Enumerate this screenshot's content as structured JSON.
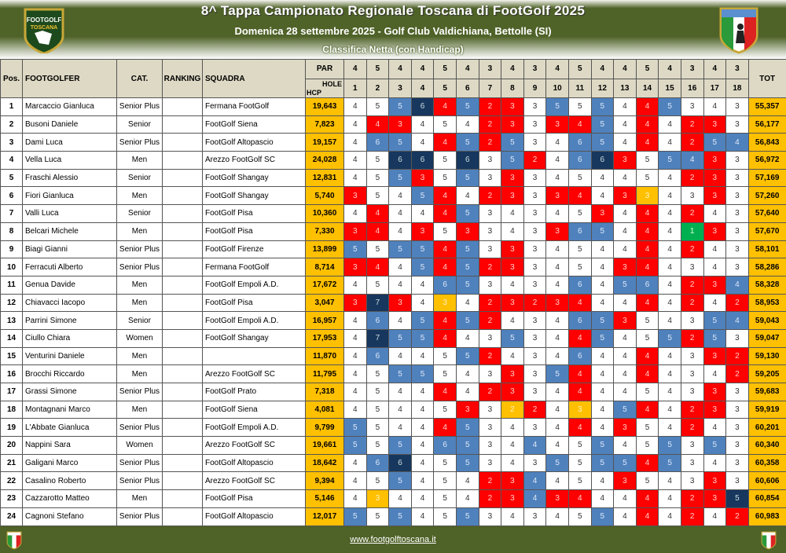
{
  "header": {
    "title": "8^ Tappa Campionato Regionale Toscana di FootGolf 2025",
    "subtitle": "Domenica 28 settembre 2025 - Golf Club Valdichiana, Bettolle (SI)",
    "classification": "Classifica Netta (con Handicap)",
    "logo_left": "FOOTGOLF TOSCANA",
    "logo_right": "AIFG"
  },
  "columns": {
    "pos": "Pos.",
    "footgolfer": "FOOTGOLFER",
    "cat": "CAT.",
    "ranking": "RANKING",
    "squadra": "SQUADRA",
    "par": "PAR",
    "hole": "HOLE",
    "hcp": "HCP",
    "tot": "TOT"
  },
  "holes": [
    "1",
    "2",
    "3",
    "4",
    "5",
    "6",
    "7",
    "8",
    "9",
    "10",
    "11",
    "12",
    "13",
    "14",
    "15",
    "16",
    "17",
    "18"
  ],
  "par": [
    4,
    5,
    4,
    4,
    5,
    4,
    3,
    4,
    3,
    4,
    5,
    4,
    4,
    5,
    4,
    3,
    4,
    3
  ],
  "colors": {
    "birdie": "#FF0000",
    "eagle": "#FFC000",
    "hole_in_one": "#00B050",
    "bogey": "#4F81BD",
    "double_bogey": "#17375E",
    "hcp_tot": "#FFC000",
    "header_bg": "#DDD9C4",
    "banner": "#4F6228"
  },
  "rows": [
    {
      "pos": "1",
      "name": "Marcaccio Gianluca",
      "cat": "Senior Plus",
      "ranking": "",
      "team": "Fermana FootGolf",
      "hcp": "19,643",
      "scores": [
        4,
        5,
        5,
        6,
        4,
        5,
        2,
        3,
        3,
        5,
        5,
        5,
        4,
        4,
        5,
        3,
        4,
        3
      ],
      "tot": "55,357"
    },
    {
      "pos": "2",
      "name": "Busoni Daniele",
      "cat": "Senior",
      "ranking": "",
      "team": "FootGolf Siena",
      "hcp": "7,823",
      "scores": [
        4,
        4,
        3,
        4,
        5,
        4,
        2,
        3,
        3,
        3,
        4,
        5,
        4,
        4,
        4,
        2,
        3,
        3
      ],
      "tot": "56,177"
    },
    {
      "pos": "3",
      "name": "Dami Luca",
      "cat": "Senior Plus",
      "ranking": "",
      "team": "FootGolf Altopascio",
      "hcp": "19,157",
      "scores": [
        4,
        6,
        5,
        4,
        4,
        5,
        2,
        5,
        3,
        4,
        6,
        5,
        4,
        4,
        4,
        2,
        5,
        4
      ],
      "tot": "56,843"
    },
    {
      "pos": "4",
      "name": "Vella Luca",
      "cat": "Men",
      "ranking": "",
      "team": "Arezzo FootGolf SC",
      "hcp": "24,028",
      "scores": [
        4,
        5,
        6,
        6,
        5,
        6,
        3,
        5,
        2,
        4,
        6,
        6,
        3,
        5,
        5,
        4,
        3,
        3
      ],
      "tot": "56,972"
    },
    {
      "pos": "5",
      "name": "Fraschi Alessio",
      "cat": "Senior",
      "ranking": "",
      "team": "FootGolf Shangay",
      "hcp": "12,831",
      "scores": [
        4,
        5,
        5,
        3,
        5,
        5,
        3,
        3,
        3,
        4,
        5,
        4,
        4,
        5,
        4,
        2,
        3,
        3
      ],
      "tot": "57,169"
    },
    {
      "pos": "6",
      "name": "Fiori Gianluca",
      "cat": "Men",
      "ranking": "",
      "team": "FootGolf Shangay",
      "hcp": "5,740",
      "scores": [
        3,
        5,
        4,
        5,
        4,
        4,
        2,
        3,
        3,
        3,
        4,
        4,
        3,
        3,
        4,
        3,
        3,
        3
      ],
      "tot": "57,260"
    },
    {
      "pos": "7",
      "name": "Valli Luca",
      "cat": "Senior",
      "ranking": "",
      "team": "FootGolf Pisa",
      "hcp": "10,360",
      "scores": [
        4,
        4,
        4,
        4,
        4,
        5,
        3,
        4,
        3,
        4,
        5,
        3,
        4,
        4,
        4,
        2,
        4,
        3
      ],
      "tot": "57,640"
    },
    {
      "pos": "8",
      "name": "Belcari Michele",
      "cat": "Men",
      "ranking": "",
      "team": "FootGolf Pisa",
      "hcp": "7,330",
      "scores": [
        3,
        4,
        4,
        3,
        5,
        3,
        3,
        4,
        3,
        3,
        6,
        5,
        4,
        4,
        4,
        1,
        3,
        3
      ],
      "tot": "57,670"
    },
    {
      "pos": "9",
      "name": "Biagi Gianni",
      "cat": "Senior Plus",
      "ranking": "",
      "team": "FootGolf Firenze",
      "hcp": "13,899",
      "scores": [
        5,
        5,
        5,
        5,
        4,
        5,
        3,
        3,
        3,
        4,
        5,
        4,
        4,
        4,
        4,
        2,
        4,
        3
      ],
      "tot": "58,101"
    },
    {
      "pos": "10",
      "name": "Ferracuti Alberto",
      "cat": "Senior Plus",
      "ranking": "",
      "team": "Fermana FootGolf",
      "hcp": "8,714",
      "scores": [
        3,
        4,
        4,
        5,
        4,
        5,
        2,
        3,
        3,
        4,
        5,
        4,
        3,
        4,
        4,
        3,
        4,
        3
      ],
      "tot": "58,286"
    },
    {
      "pos": "11",
      "name": "Genua Davide",
      "cat": "Men",
      "ranking": "",
      "team": "FootGolf Empoli A.D.",
      "hcp": "17,672",
      "scores": [
        4,
        5,
        4,
        4,
        6,
        5,
        3,
        4,
        3,
        4,
        6,
        4,
        5,
        6,
        4,
        2,
        3,
        4
      ],
      "tot": "58,328"
    },
    {
      "pos": "12",
      "name": "Chiavacci Iacopo",
      "cat": "Men",
      "ranking": "",
      "team": "FootGolf Pisa",
      "hcp": "3,047",
      "scores": [
        3,
        7,
        3,
        4,
        3,
        4,
        2,
        3,
        2,
        3,
        4,
        4,
        4,
        4,
        4,
        2,
        4,
        2
      ],
      "tot": "58,953"
    },
    {
      "pos": "13",
      "name": "Parrini Simone",
      "cat": "Senior",
      "ranking": "",
      "team": "FootGolf Empoli A.D.",
      "hcp": "16,957",
      "scores": [
        4,
        6,
        4,
        5,
        4,
        5,
        2,
        4,
        3,
        4,
        6,
        5,
        3,
        5,
        4,
        3,
        5,
        4
      ],
      "tot": "59,043"
    },
    {
      "pos": "14",
      "name": "Ciullo Chiara",
      "cat": "Women",
      "ranking": "",
      "team": "FootGolf Shangay",
      "hcp": "17,953",
      "scores": [
        4,
        7,
        5,
        5,
        4,
        4,
        3,
        5,
        3,
        4,
        4,
        5,
        4,
        5,
        5,
        2,
        5,
        3
      ],
      "tot": "59,047"
    },
    {
      "pos": "15",
      "name": "Venturini Daniele",
      "cat": "Men",
      "ranking": "",
      "team": "",
      "hcp": "11,870",
      "scores": [
        4,
        6,
        4,
        4,
        5,
        5,
        2,
        4,
        3,
        4,
        6,
        4,
        4,
        4,
        4,
        3,
        3,
        2
      ],
      "tot": "59,130"
    },
    {
      "pos": "16",
      "name": "Brocchi Riccardo",
      "cat": "Men",
      "ranking": "",
      "team": "Arezzo FootGolf SC",
      "hcp": "11,795",
      "scores": [
        4,
        5,
        5,
        5,
        5,
        4,
        3,
        3,
        3,
        5,
        4,
        4,
        4,
        4,
        4,
        3,
        4,
        2
      ],
      "tot": "59,205"
    },
    {
      "pos": "17",
      "name": "Grassi Simone",
      "cat": "Senior Plus",
      "ranking": "",
      "team": "FootGolf Prato",
      "hcp": "7,318",
      "scores": [
        4,
        5,
        4,
        4,
        4,
        4,
        2,
        3,
        3,
        4,
        4,
        4,
        4,
        5,
        4,
        3,
        3,
        3
      ],
      "tot": "59,683"
    },
    {
      "pos": "18",
      "name": "Montagnani Marco",
      "cat": "Men",
      "ranking": "",
      "team": "FootGolf Siena",
      "hcp": "4,081",
      "scores": [
        4,
        5,
        4,
        4,
        5,
        3,
        3,
        2,
        2,
        4,
        3,
        4,
        5,
        4,
        4,
        2,
        3,
        3
      ],
      "tot": "59,919"
    },
    {
      "pos": "19",
      "name": "L'Abbate Gianluca",
      "cat": "Senior Plus",
      "ranking": "",
      "team": "FootGolf Empoli A.D.",
      "hcp": "9,799",
      "scores": [
        5,
        5,
        4,
        4,
        4,
        5,
        3,
        4,
        3,
        4,
        4,
        4,
        3,
        5,
        4,
        2,
        4,
        3
      ],
      "tot": "60,201"
    },
    {
      "pos": "20",
      "name": "Nappini Sara",
      "cat": "Women",
      "ranking": "",
      "team": "Arezzo FootGolf SC",
      "hcp": "19,661",
      "scores": [
        5,
        5,
        5,
        4,
        6,
        5,
        3,
        4,
        4,
        4,
        5,
        5,
        4,
        5,
        5,
        3,
        5,
        3
      ],
      "tot": "60,340"
    },
    {
      "pos": "21",
      "name": "Galigani Marco",
      "cat": "Senior Plus",
      "ranking": "",
      "team": "FootGolf Altopascio",
      "hcp": "18,642",
      "scores": [
        4,
        6,
        6,
        4,
        5,
        5,
        3,
        4,
        3,
        5,
        5,
        5,
        5,
        4,
        5,
        3,
        4,
        3
      ],
      "tot": "60,358"
    },
    {
      "pos": "22",
      "name": "Casalino Roberto",
      "cat": "Senior Plus",
      "ranking": "",
      "team": "Arezzo FootGolf SC",
      "hcp": "9,394",
      "scores": [
        4,
        5,
        5,
        4,
        5,
        4,
        2,
        3,
        4,
        4,
        5,
        4,
        3,
        5,
        4,
        3,
        3,
        3
      ],
      "tot": "60,606"
    },
    {
      "pos": "23",
      "name": "Cazzarotto Matteo",
      "cat": "Men",
      "ranking": "",
      "team": "FootGolf Pisa",
      "hcp": "5,146",
      "scores": [
        4,
        3,
        4,
        4,
        5,
        4,
        2,
        3,
        4,
        3,
        4,
        4,
        4,
        4,
        4,
        2,
        3,
        5
      ],
      "tot": "60,854"
    },
    {
      "pos": "24",
      "name": "Cagnoni Stefano",
      "cat": "Senior Plus",
      "ranking": "",
      "team": "FootGolf Altopascio",
      "hcp": "12,017",
      "scores": [
        5,
        5,
        5,
        4,
        5,
        5,
        3,
        4,
        3,
        4,
        5,
        5,
        4,
        4,
        4,
        2,
        4,
        2
      ],
      "tot": "60,983"
    }
  ],
  "footer": {
    "link": "www.footgolftoscana.it"
  }
}
